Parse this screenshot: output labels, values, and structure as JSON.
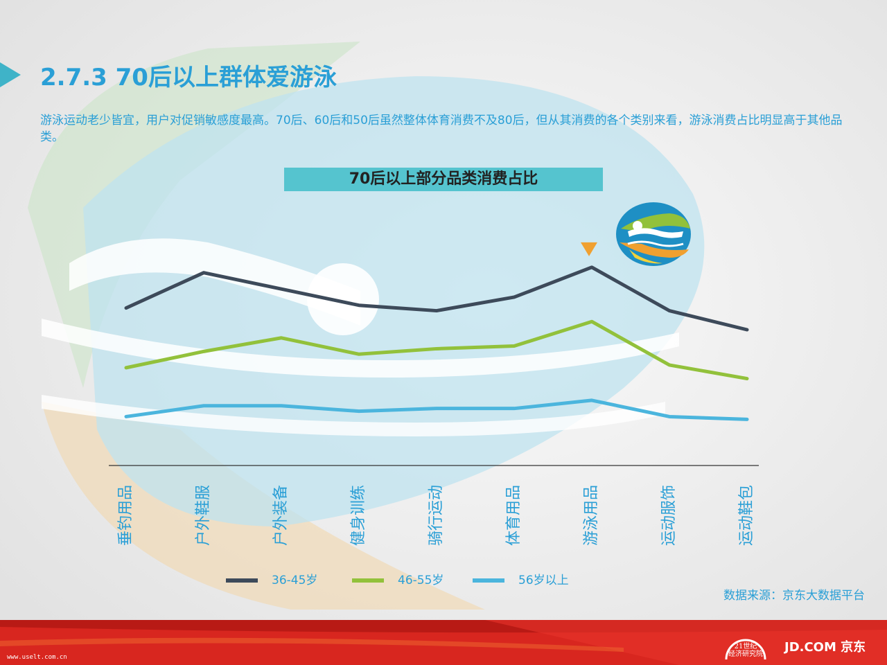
{
  "header": {
    "title": "2.7.3  70后以上群体爱游泳",
    "description": "游泳运动老少皆宜，用户对促销敏感度最高。70后、60后和50后虽然整体体育消费不及80后，但从其消费的各个类别来看，游泳消费占比明显高于其他品类。"
  },
  "chart_title": "70后以上部分品类消费占比",
  "source": "数据来源：京东大数据平台",
  "footer": {
    "url": "www.uselt.com.cn",
    "logo_21_line1": "21世纪",
    "logo_21_line2": "经济研究院",
    "jd_logo": "JD.COM 京东"
  },
  "colors": {
    "accent": "#2a9fd6",
    "series_36_45": "#3d4a5a",
    "series_46_55": "#92c13b",
    "series_56_plus": "#4bb5dd",
    "highlight_marker": "#f0a030"
  },
  "icons": [
    "swimming-icon",
    "marker-triangle-icon"
  ],
  "chart_data": {
    "type": "line",
    "title": "70后以上部分品类消费占比",
    "categories": [
      "垂钓用品",
      "户外鞋服",
      "户外装备",
      "健身训练",
      "骑行运动",
      "体育用品",
      "游泳用品",
      "运动服饰",
      "运动鞋包"
    ],
    "series": [
      {
        "name": "36-45岁",
        "values": [
          58,
          71,
          65,
          59,
          57,
          62,
          73,
          57,
          50
        ]
      },
      {
        "name": "46-55岁",
        "values": [
          36,
          42,
          47,
          41,
          43,
          44,
          53,
          37,
          32
        ]
      },
      {
        "name": "56岁以上",
        "values": [
          18,
          22,
          22,
          20,
          21,
          21,
          24,
          18,
          17
        ]
      }
    ],
    "ylim": [
      0,
      100
    ],
    "highlight_category": "游泳用品",
    "grid": false,
    "legend_position": "bottom"
  }
}
